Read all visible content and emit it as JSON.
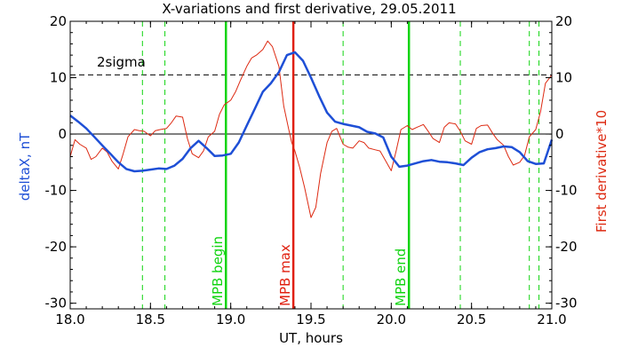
{
  "chart_data": {
    "type": "line",
    "title": "X-variations and first derivative, 29.05.2011",
    "xlabel": "UT, hours",
    "ylabel_left": "deltaX, nT",
    "ylabel_right": "First derivative*10",
    "xlim": [
      18.0,
      21.0
    ],
    "ylim": [
      -31,
      20
    ],
    "x_ticks": [
      "18.0",
      "18.5",
      "19.0",
      "19.5",
      "20.0",
      "20.5",
      "21.0"
    ],
    "y_ticks_left": [
      "20",
      "10",
      "0",
      "-10",
      "-20",
      "-30"
    ],
    "y_ticks_right": [
      "20",
      "10",
      "0",
      "-10",
      "-20",
      "-30"
    ],
    "grid": false,
    "colors": {
      "deltaX": "#1e4fd6",
      "derivative": "#dd2a12",
      "mpb_bounds": "#11d411",
      "mpb_max": "#e02010",
      "axis": "#000000"
    },
    "series": [
      {
        "color": "#1e4fd6",
        "x": [
          18.0,
          18.05,
          18.1,
          18.15,
          18.2,
          18.25,
          18.3,
          18.35,
          18.4,
          18.45,
          18.5,
          18.55,
          18.6,
          18.65,
          18.7,
          18.75,
          18.8,
          18.85,
          18.9,
          18.95,
          19.0,
          19.05,
          19.1,
          19.15,
          19.2,
          19.25,
          19.3,
          19.35,
          19.4,
          19.45,
          19.5,
          19.55,
          19.6,
          19.65,
          19.7,
          19.75,
          19.8,
          19.85,
          19.9,
          19.95,
          20.0,
          20.05,
          20.1,
          20.15,
          20.2,
          20.25,
          20.3,
          20.35,
          20.4,
          20.45,
          20.5,
          20.55,
          20.6,
          20.65,
          20.7,
          20.75,
          20.8,
          20.85,
          20.9,
          20.95,
          21.0
        ],
        "values": [
          3.3,
          2.2,
          1.0,
          -0.5,
          -2.0,
          -3.5,
          -5.0,
          -6.2,
          -6.6,
          -6.5,
          -6.3,
          -6.1,
          -6.2,
          -5.6,
          -4.4,
          -2.5,
          -1.2,
          -2.5,
          -3.9,
          -3.8,
          -3.5,
          -1.5,
          1.5,
          4.5,
          7.5,
          9.0,
          11.0,
          14.0,
          14.5,
          13.0,
          10.0,
          6.8,
          3.8,
          2.2,
          1.8,
          1.5,
          1.2,
          0.4,
          0.1,
          -0.6,
          -4.0,
          -5.8,
          -5.6,
          -5.2,
          -4.8,
          -4.6,
          -4.9,
          -5.0,
          -5.2,
          -5.5,
          -4.2,
          -3.2,
          -2.7,
          -2.5,
          -2.2,
          -2.3,
          -3.2,
          -4.8,
          -5.3,
          -5.2,
          -1.0
        ]
      },
      {
        "color": "#dd2a12",
        "x": [
          18.0,
          18.03,
          18.06,
          18.1,
          18.13,
          18.16,
          18.2,
          18.23,
          18.26,
          18.3,
          18.33,
          18.36,
          18.4,
          18.43,
          18.46,
          18.5,
          18.53,
          18.56,
          18.6,
          18.63,
          18.66,
          18.7,
          18.73,
          18.76,
          18.8,
          18.83,
          18.86,
          18.9,
          18.93,
          18.96,
          19.0,
          19.03,
          19.06,
          19.1,
          19.13,
          19.16,
          19.2,
          19.23,
          19.26,
          19.3,
          19.33,
          19.36,
          19.38,
          19.4,
          19.43,
          19.46,
          19.5,
          19.53,
          19.56,
          19.6,
          19.63,
          19.66,
          19.7,
          19.73,
          19.76,
          19.8,
          19.83,
          19.86,
          19.9,
          19.93,
          19.96,
          20.0,
          20.03,
          20.06,
          20.1,
          20.13,
          20.16,
          20.2,
          20.23,
          20.26,
          20.3,
          20.33,
          20.36,
          20.4,
          20.43,
          20.46,
          20.5,
          20.53,
          20.56,
          20.6,
          20.63,
          20.66,
          20.7,
          20.73,
          20.76,
          20.8,
          20.83,
          20.86,
          20.9,
          20.93,
          20.96,
          21.0
        ],
        "values": [
          -4.0,
          -1.0,
          -1.8,
          -2.5,
          -4.5,
          -4.0,
          -2.5,
          -3.2,
          -4.8,
          -6.2,
          -3.5,
          -0.5,
          0.8,
          0.6,
          0.5,
          -0.3,
          0.6,
          0.8,
          1.0,
          2.0,
          3.2,
          3.0,
          -0.8,
          -3.5,
          -4.2,
          -3.0,
          -0.5,
          0.5,
          3.5,
          5.2,
          6.0,
          7.5,
          9.5,
          12.0,
          13.5,
          14.0,
          15.0,
          16.5,
          15.5,
          12.0,
          5.0,
          1.0,
          -1.5,
          -3.0,
          -6.0,
          -9.5,
          -14.8,
          -13.0,
          -7.0,
          -1.5,
          0.5,
          1.0,
          -1.8,
          -2.3,
          -2.5,
          -1.2,
          -1.5,
          -2.5,
          -2.8,
          -3.0,
          -4.5,
          -6.5,
          -3.0,
          0.8,
          1.5,
          0.8,
          1.2,
          1.7,
          0.5,
          -0.8,
          -1.5,
          1.2,
          2.0,
          1.8,
          0.5,
          -1.2,
          -1.8,
          1.0,
          1.5,
          1.6,
          0.2,
          -1.0,
          -2.0,
          -4.0,
          -5.5,
          -5.0,
          -3.8,
          -0.5,
          0.8,
          4.0,
          9.0,
          10.5
        ]
      }
    ],
    "annotations": {
      "two_sigma_label": "2sigma",
      "two_sigma_value": 10.5,
      "mpb_begin": {
        "label": "MPB begin",
        "x": 18.97
      },
      "mpb_max": {
        "label": "MPB max",
        "x": 19.39
      },
      "mpb_end": {
        "label": "MPB end",
        "x": 20.11
      },
      "dashed_green_x": [
        18.45,
        18.59,
        19.7,
        20.43,
        20.86,
        20.92
      ]
    }
  }
}
